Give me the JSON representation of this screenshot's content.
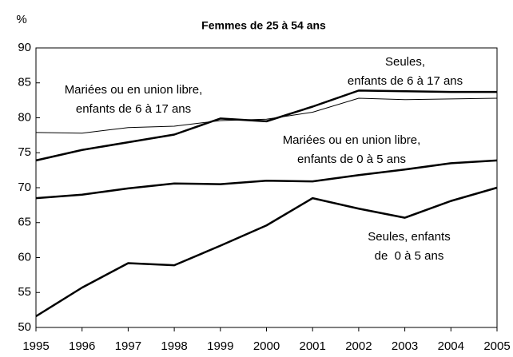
{
  "chart_data": {
    "type": "line",
    "title": "Femmes de 25 à 54 ans",
    "y_label": "%",
    "x": [
      1995,
      1996,
      1997,
      1998,
      1999,
      2000,
      2001,
      2002,
      2003,
      2004,
      2005
    ],
    "xlim": [
      1995,
      2005
    ],
    "xticks": [
      1995,
      1996,
      1997,
      1998,
      1999,
      2000,
      2001,
      2002,
      2003,
      2004,
      2005
    ],
    "ylim": [
      50,
      90
    ],
    "yticks": [
      50,
      55,
      60,
      65,
      70,
      75,
      80,
      85,
      90
    ],
    "series": [
      {
        "color": "#000000",
        "width": 1,
        "values": [
          77.9,
          77.8,
          78.6,
          78.8,
          79.6,
          79.8,
          80.8,
          82.8,
          82.6,
          82.7,
          82.8
        ]
      },
      {
        "color": "#000000",
        "width": 2.5,
        "values": [
          73.9,
          75.4,
          76.5,
          77.6,
          79.9,
          79.5,
          81.6,
          83.9,
          83.8,
          83.7,
          83.7
        ]
      },
      {
        "color": "#000000",
        "width": 2.5,
        "values": [
          68.5,
          69.0,
          69.9,
          70.6,
          70.5,
          71.0,
          70.9,
          71.8,
          72.6,
          73.5,
          73.9
        ]
      },
      {
        "color": "#000000",
        "width": 2.5,
        "values": [
          51.6,
          55.7,
          59.2,
          58.9,
          61.7,
          64.6,
          68.5,
          67.0,
          65.7,
          68.1,
          70.0
        ]
      }
    ],
    "annotations": [
      {
        "lines": [
          "Mariées ou en union libre,",
          "enfants de 6 à 17 ans"
        ]
      },
      {
        "lines": [
          "Seules,",
          "enfants de 6 à 17 ans"
        ]
      },
      {
        "lines": [
          "Mariées ou en union libre,",
          "enfants de 0 à 5 ans"
        ]
      },
      {
        "lines": [
          "Seules, enfants",
          "de  0 à 5 ans"
        ]
      }
    ]
  }
}
